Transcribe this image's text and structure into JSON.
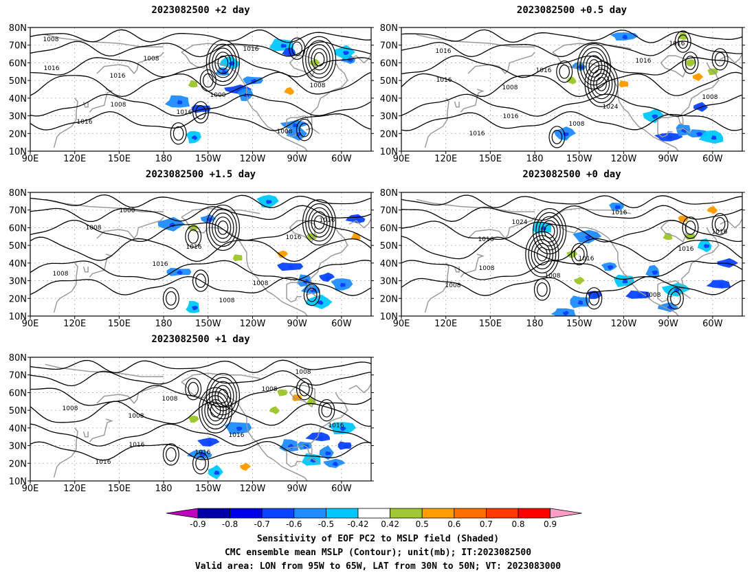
{
  "panels": [
    {
      "title": "2023082500 +2 day",
      "iso_labels": [
        "1008",
        "1016",
        "1016",
        "1016",
        "1008",
        "1016",
        "1008",
        "1000",
        "1008",
        "1016",
        "1008"
      ],
      "pos_blobs": [
        [
          -160,
          48
        ],
        [
          -95,
          44
        ],
        [
          -78,
          60
        ]
      ],
      "neg_blobs": [
        [
          -140,
          55
        ],
        [
          -135,
          60
        ],
        [
          -130,
          45
        ],
        [
          -125,
          42
        ],
        [
          -120,
          50
        ],
        [
          -100,
          70
        ],
        [
          -95,
          66
        ],
        [
          -90,
          20
        ],
        [
          -92,
          25
        ],
        [
          -160,
          18
        ],
        [
          -155,
          34
        ],
        [
          -170,
          38
        ],
        [
          -55,
          62
        ],
        [
          -58,
          66
        ]
      ],
      "lows": [
        [
          -140,
          60
        ],
        [
          -75,
          62
        ],
        [
          -150,
          50
        ],
        [
          -155,
          32
        ],
        [
          -170,
          20
        ],
        [
          -85,
          22
        ],
        [
          -90,
          68
        ]
      ]
    },
    {
      "title": "2023082500 +0.5 day",
      "iso_labels": [
        "1016",
        "1008",
        "1008",
        "1016",
        "1008",
        "1016",
        "1016",
        "1024",
        "1016",
        "1016",
        "1016"
      ],
      "pos_blobs": [
        [
          -155,
          50
        ],
        [
          -70,
          52
        ],
        [
          -75,
          60
        ],
        [
          -60,
          55
        ],
        [
          -120,
          48
        ],
        [
          -80,
          75
        ]
      ],
      "neg_blobs": [
        [
          -150,
          58
        ],
        [
          -100,
          30
        ],
        [
          -90,
          18
        ],
        [
          -80,
          22
        ],
        [
          -70,
          20
        ],
        [
          -60,
          18
        ],
        [
          -68,
          35
        ],
        [
          -160,
          20
        ],
        [
          -120,
          75
        ]
      ],
      "lows": [
        [
          -135,
          48
        ],
        [
          -140,
          58
        ],
        [
          -55,
          62
        ],
        [
          -75,
          60
        ],
        [
          -80,
          72
        ],
        [
          -160,
          55
        ],
        [
          -165,
          18
        ]
      ]
    },
    {
      "title": "2023082500 +1.5 day",
      "iso_labels": [
        "1008",
        "1016",
        "1008",
        "1016",
        "1008",
        "1000",
        "1016",
        "1008",
        "1016"
      ],
      "pos_blobs": [
        [
          -160,
          60
        ],
        [
          -100,
          45
        ],
        [
          -80,
          55
        ],
        [
          -130,
          43
        ],
        [
          -50,
          55
        ]
      ],
      "neg_blobs": [
        [
          -150,
          65
        ],
        [
          -110,
          75
        ],
        [
          -95,
          38
        ],
        [
          -85,
          30
        ],
        [
          -80,
          25
        ],
        [
          -75,
          18
        ],
        [
          -70,
          32
        ],
        [
          -60,
          28
        ],
        [
          -170,
          35
        ],
        [
          -160,
          15
        ],
        [
          -50,
          65
        ],
        [
          -175,
          62
        ]
      ],
      "lows": [
        [
          -140,
          60
        ],
        [
          -75,
          63
        ],
        [
          -160,
          55
        ],
        [
          -155,
          30
        ],
        [
          -80,
          22
        ],
        [
          -175,
          20
        ]
      ]
    },
    {
      "title": "2023082500 +0 day",
      "iso_labels": [
        "1016",
        "1008",
        "1016",
        "1016",
        "1008",
        "1024",
        "1016",
        "1008",
        "1016",
        "1008"
      ],
      "pos_blobs": [
        [
          -155,
          45
        ],
        [
          -80,
          65
        ],
        [
          -75,
          55
        ],
        [
          -90,
          55
        ],
        [
          -60,
          70
        ],
        [
          -150,
          30
        ]
      ],
      "neg_blobs": [
        [
          -130,
          38
        ],
        [
          -120,
          30
        ],
        [
          -110,
          22
        ],
        [
          -100,
          35
        ],
        [
          -90,
          15
        ],
        [
          -85,
          25
        ],
        [
          -140,
          22
        ],
        [
          -150,
          18
        ],
        [
          -160,
          12
        ],
        [
          -65,
          50
        ],
        [
          -50,
          40
        ],
        [
          -145,
          55
        ],
        [
          -125,
          72
        ],
        [
          -175,
          60
        ],
        [
          -55,
          28
        ]
      ],
      "lows": [
        [
          -175,
          45
        ],
        [
          -170,
          58
        ],
        [
          -75,
          60
        ],
        [
          -55,
          62
        ],
        [
          -150,
          45
        ],
        [
          -140,
          20
        ],
        [
          -85,
          20
        ],
        [
          -175,
          25
        ]
      ]
    },
    {
      "title": "2023082500 +1 day",
      "iso_labels": [
        "1008",
        "1016",
        "1008",
        "1016",
        "1016",
        "1008",
        "1016",
        "1008",
        "1008",
        "1016"
      ],
      "pos_blobs": [
        [
          -100,
          60
        ],
        [
          -90,
          57
        ],
        [
          -80,
          55
        ],
        [
          -105,
          50
        ],
        [
          -125,
          18
        ],
        [
          -160,
          45
        ]
      ],
      "neg_blobs": [
        [
          -85,
          30
        ],
        [
          -80,
          22
        ],
        [
          -75,
          35
        ],
        [
          -70,
          26
        ],
        [
          -65,
          20
        ],
        [
          -60,
          40
        ],
        [
          -58,
          30
        ],
        [
          -95,
          30
        ],
        [
          -155,
          25
        ],
        [
          -145,
          15
        ],
        [
          -150,
          32
        ],
        [
          -130,
          40
        ]
      ],
      "lows": [
        [
          -145,
          50
        ],
        [
          -140,
          58
        ],
        [
          -160,
          62
        ],
        [
          -85,
          62
        ],
        [
          -70,
          50
        ],
        [
          -155,
          20
        ],
        [
          -175,
          25
        ]
      ]
    }
  ],
  "axes": {
    "lat_labels": [
      "10N",
      "20N",
      "30N",
      "40N",
      "50N",
      "60N",
      "70N",
      "80N"
    ],
    "lon_labels": [
      "90E",
      "120E",
      "150E",
      "180",
      "150W",
      "120W",
      "90W",
      "60W"
    ]
  },
  "colorbar": {
    "tick_labels": [
      "-0.9",
      "-0.8",
      "-0.7",
      "-0.6",
      "-0.5",
      "-0.42",
      "0.42",
      "0.5",
      "0.6",
      "0.7",
      "0.8",
      "0.9"
    ],
    "colors": [
      "#c000c0",
      "#0000a8",
      "#0000e8",
      "#0a44ff",
      "#1e8cff",
      "#00c8ff",
      "#ffffff",
      "#a0c832",
      "#ff9e00",
      "#ff6e00",
      "#ff3a00",
      "#ff0000",
      "#ff9cc8"
    ]
  },
  "footer": {
    "line1": "Sensitivity of EOF PC2 to MSLP field (Shaded)",
    "line2": "CMC ensemble mean MSLP (Contour); unit(mb); IT:2023082500",
    "line3": "Valid area: LON from 95W to 65W, LAT from 30N to 50N; VT: 2023083000"
  }
}
